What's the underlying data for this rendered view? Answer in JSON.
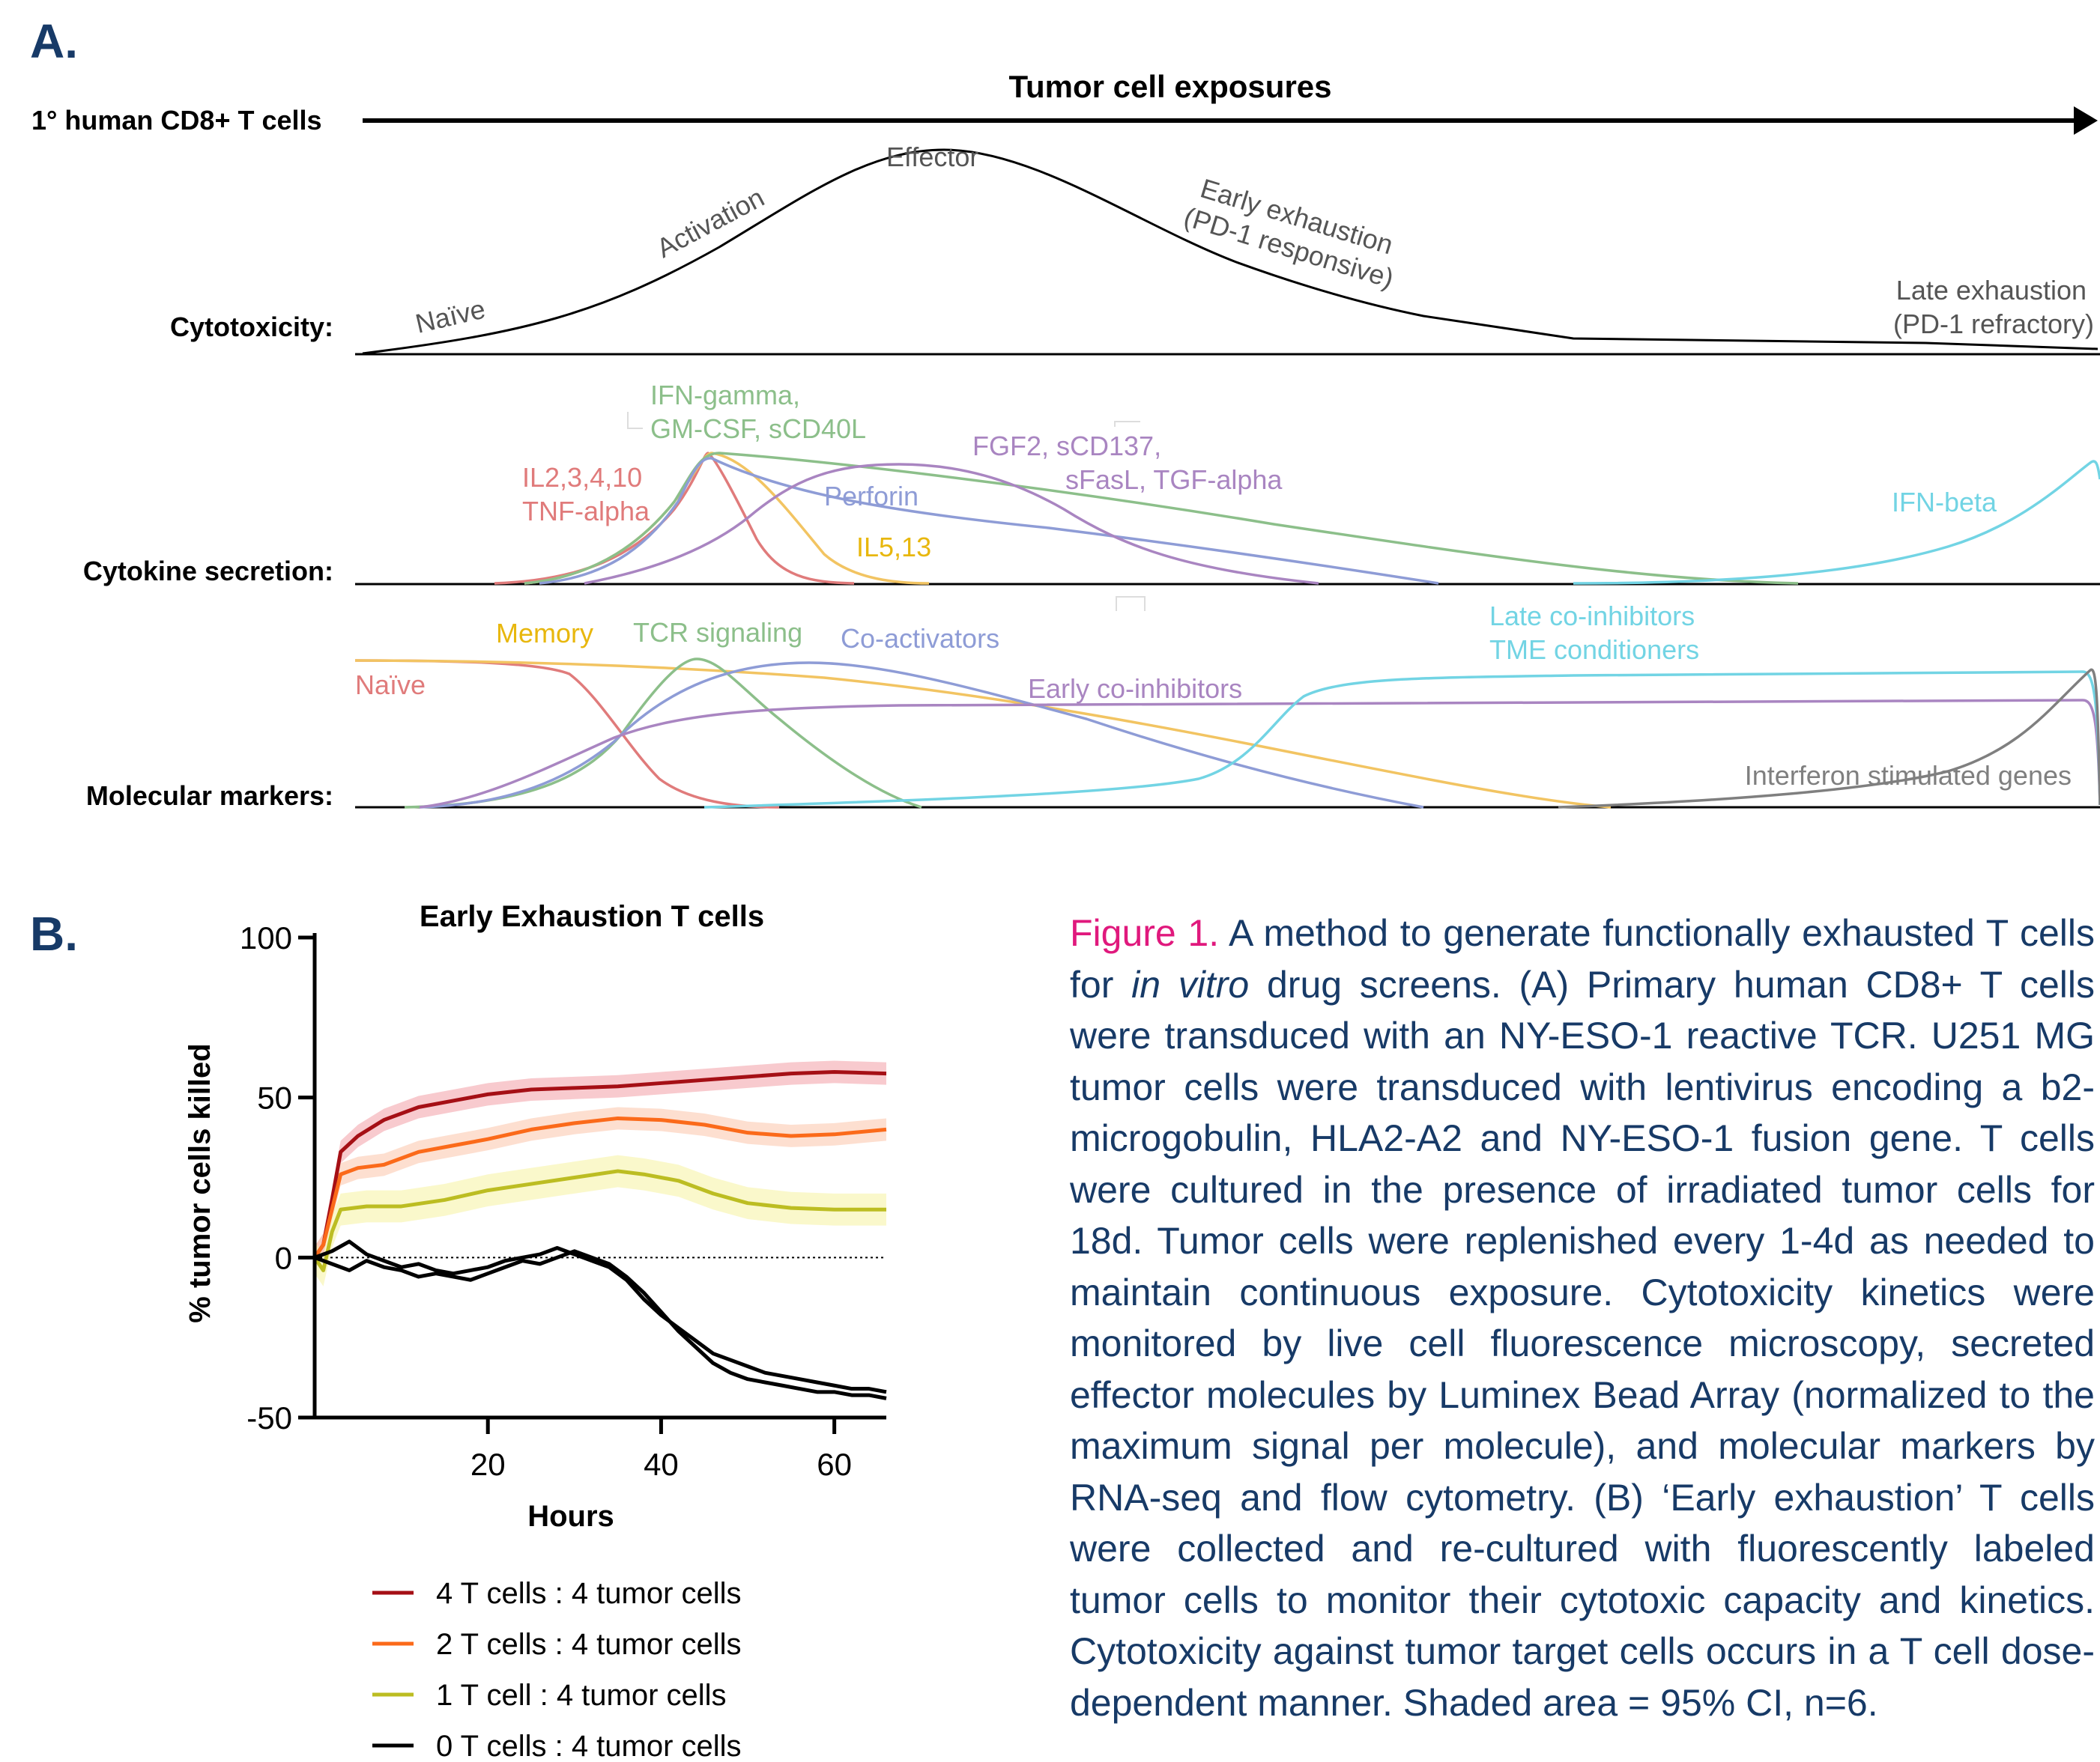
{
  "panel_a": {
    "label": "A.",
    "timeline_title": "Tumor cell exposures",
    "timeline_row_label": "1° human CD8+ T cells",
    "rows": {
      "cytotoxicity": "Cytotoxicity:",
      "cytokine": "Cytokine secretion:",
      "markers": "Molecular markers:"
    },
    "cytotoxicity_stages": {
      "naive": "Naïve",
      "activation": "Activation",
      "effector": "Effector",
      "early_line1": "Early exhaustion",
      "early_line2": "(PD-1 responsive)",
      "late_line1": "Late exhaustion",
      "late_line2": "(PD-1 refractory)"
    },
    "cytokines": {
      "ifng_line1": "IFN-gamma,",
      "ifng_line2": "GM-CSF, sCD40L",
      "il2_line1": "IL2,3,4,10",
      "il2_line2": "TNF-alpha",
      "perforin": "Perforin",
      "il5": "IL5,13",
      "fgf_line1": "FGF2, sCD137,",
      "fgf_line2": "sFasL, TGF-alpha",
      "ifnb": "IFN-beta"
    },
    "markers": {
      "memory": "Memory",
      "naive": "Naïve",
      "tcr": "TCR signaling",
      "coact": "Co-activators",
      "early_coinh": "Early co-inhibitors",
      "late_line1": "Late co-inhibitors",
      "late_line2": "TME conditioners",
      "isg": "Interferon stimulated genes"
    },
    "colors": {
      "red": "#e07b7b",
      "green": "#8cbf8a",
      "blue": "#8e9cd6",
      "orange": "#f2c462",
      "purple": "#a985c1",
      "cyan": "#72d4e4",
      "gray": "#7f7f7f",
      "memory_label": "#e8b70d",
      "il5_label": "#e8b70d"
    }
  },
  "panel_b": {
    "label": "B.",
    "chart_data": {
      "type": "line",
      "title": "Early Exhaustion T cells",
      "xlabel": "Hours",
      "ylabel": "% tumor cells killed",
      "xlim": [
        0,
        66
      ],
      "ylim": [
        -50,
        100
      ],
      "x_ticks": [
        "20",
        "40",
        "60"
      ],
      "y_ticks": [
        "100",
        "50",
        "0",
        "-50"
      ],
      "reference_line": 0,
      "legend_placement": "below",
      "series": [
        {
          "name": "4 T cells : 4 tumor cells",
          "color": "#a50f15",
          "band_color": "#f4a7ad",
          "ci": 3.5,
          "points": [
            [
              0,
              0
            ],
            [
              1,
              4
            ],
            [
              2,
              18
            ],
            [
              3,
              33
            ],
            [
              5,
              38
            ],
            [
              8,
              43
            ],
            [
              12,
              47
            ],
            [
              16,
              49
            ],
            [
              20,
              51
            ],
            [
              25,
              52.5
            ],
            [
              30,
              53
            ],
            [
              35,
              53.5
            ],
            [
              40,
              54.5
            ],
            [
              45,
              55.5
            ],
            [
              50,
              56.5
            ],
            [
              55,
              57.5
            ],
            [
              60,
              58
            ],
            [
              66,
              57.5
            ]
          ]
        },
        {
          "name": "2 T cells : 4 tumor cells",
          "color": "#fb6a1a",
          "band_color": "#fcc9b0",
          "ci": 3.5,
          "points": [
            [
              0,
              0
            ],
            [
              1,
              4
            ],
            [
              2,
              15
            ],
            [
              3,
              26
            ],
            [
              5,
              28
            ],
            [
              8,
              29
            ],
            [
              12,
              33
            ],
            [
              16,
              35
            ],
            [
              20,
              37
            ],
            [
              25,
              40
            ],
            [
              30,
              42
            ],
            [
              35,
              43.5
            ],
            [
              40,
              43
            ],
            [
              45,
              41.5
            ],
            [
              50,
              39
            ],
            [
              55,
              38
            ],
            [
              60,
              38.5
            ],
            [
              66,
              40
            ]
          ]
        },
        {
          "name": "1 T cell : 4 tumor cells",
          "color": "#bcbd22",
          "band_color": "#f7f4a8",
          "ci": 5,
          "points": [
            [
              0,
              0
            ],
            [
              1,
              -4
            ],
            [
              2,
              8
            ],
            [
              3,
              15
            ],
            [
              6,
              16
            ],
            [
              10,
              16
            ],
            [
              15,
              18
            ],
            [
              20,
              21
            ],
            [
              25,
              23
            ],
            [
              30,
              25
            ],
            [
              35,
              27
            ],
            [
              38,
              26
            ],
            [
              42,
              24
            ],
            [
              46,
              20
            ],
            [
              50,
              17
            ],
            [
              55,
              15.5
            ],
            [
              60,
              15
            ],
            [
              66,
              15
            ]
          ]
        },
        {
          "name": "0 T cells : 4 tumor cells",
          "color": "#000000",
          "band_color": "#000000",
          "ci": 0,
          "points": [
            [
              0,
              0
            ],
            [
              2,
              2
            ],
            [
              4,
              5
            ],
            [
              6,
              1
            ],
            [
              8,
              -1
            ],
            [
              10,
              -3
            ],
            [
              12,
              -2
            ],
            [
              14,
              -4
            ],
            [
              16,
              -5
            ],
            [
              18,
              -4
            ],
            [
              20,
              -3
            ],
            [
              22,
              -1
            ],
            [
              24,
              0
            ],
            [
              26,
              1
            ],
            [
              28,
              3
            ],
            [
              30,
              1
            ],
            [
              32,
              -1
            ],
            [
              34,
              -3
            ],
            [
              36,
              -7
            ],
            [
              38,
              -13
            ],
            [
              40,
              -18
            ],
            [
              42,
              -22
            ],
            [
              44,
              -26
            ],
            [
              46,
              -30
            ],
            [
              48,
              -32
            ],
            [
              50,
              -34
            ],
            [
              52,
              -36
            ],
            [
              54,
              -37
            ],
            [
              56,
              -38
            ],
            [
              58,
              -39
            ],
            [
              60,
              -40
            ],
            [
              62,
              -41
            ],
            [
              64,
              -41
            ],
            [
              66,
              -42
            ]
          ]
        },
        {
          "name": "",
          "color": "#000000",
          "band_color": "#000000",
          "ci": 0,
          "points": [
            [
              0,
              0
            ],
            [
              2,
              -2
            ],
            [
              4,
              -4
            ],
            [
              6,
              -1
            ],
            [
              8,
              -3
            ],
            [
              10,
              -4
            ],
            [
              12,
              -6
            ],
            [
              14,
              -5
            ],
            [
              16,
              -6
            ],
            [
              18,
              -7
            ],
            [
              20,
              -5
            ],
            [
              22,
              -3
            ],
            [
              24,
              -1
            ],
            [
              26,
              -2
            ],
            [
              28,
              0
            ],
            [
              30,
              2
            ],
            [
              32,
              0
            ],
            [
              34,
              -2
            ],
            [
              36,
              -6
            ],
            [
              38,
              -11
            ],
            [
              40,
              -17
            ],
            [
              42,
              -23
            ],
            [
              44,
              -28
            ],
            [
              46,
              -33
            ],
            [
              48,
              -36
            ],
            [
              50,
              -38
            ],
            [
              52,
              -39
            ],
            [
              54,
              -40
            ],
            [
              56,
              -41
            ],
            [
              58,
              -42
            ],
            [
              60,
              -42
            ],
            [
              62,
              -43
            ],
            [
              64,
              -43
            ],
            [
              66,
              -44
            ]
          ]
        }
      ]
    }
  },
  "caption": {
    "label": "Figure 1.",
    "t1": " A method to generate functionally exhausted T cells for ",
    "t2": "in vitro",
    "t3": " drug screens. (A) Primary human CD8+ T cells were transduced with an NY-ESO-1 reactive TCR. U251 MG tumor cells were transduced with lentivirus encoding a b2-microgobulin, HLA2-A2 and NY-ESO-1 fusion gene. T cells were cultured in the presence of irradiated tumor cells for 18d. Tumor cells were replenished every 1-4d as needed to maintain continuous exposure. Cytotoxicity kinetics were monitored by live cell fluorescence microscopy, secreted effector molecules by Luminex Bead Array (normalized to the maximum signal per molecule), and molecular markers by RNA-seq and flow cytometry. (B) ‘Early exhaustion’ T cells were collected and re-cultured with fluorescently labeled tumor cells to monitor their cytotoxic capacity and kinetics. Cytotoxicity against tumor target cells occurs in a T cell dose-dependent manner. Shaded area = 95% CI, n=6."
  }
}
